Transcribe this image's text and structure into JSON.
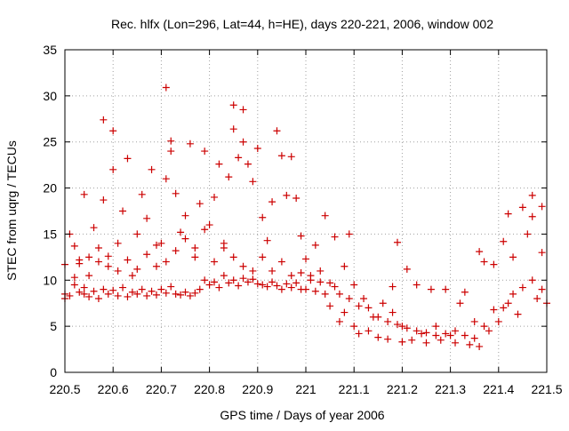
{
  "chart_data": {
    "type": "scatter",
    "title": "Rec. hlfx (Lon=296, Lat=44, h=HE), days 220-221, 2006, window 002",
    "xlabel": "GPS time / Days of year 2006",
    "ylabel": "STEC from uqrg / TECUs",
    "xlim": [
      220.5,
      221.5
    ],
    "ylim": [
      0,
      35
    ],
    "grid": true,
    "marker": "+",
    "color": "#cc0000",
    "x_ticks": [
      220.5,
      220.6,
      220.7,
      220.8,
      220.9,
      221.0,
      221.1,
      221.2,
      221.3,
      221.4,
      221.5
    ],
    "x_tick_labels": [
      "220.5",
      "220.6",
      "220.7",
      "220.8",
      "220.9",
      "221",
      "221.1",
      "221.2",
      "221.3",
      "221.4",
      "221.5"
    ],
    "y_ticks": [
      0,
      5,
      10,
      15,
      20,
      25,
      30,
      35
    ],
    "y_tick_labels": [
      "0",
      "5",
      "10",
      "15",
      "20",
      "25",
      "30",
      "35"
    ],
    "series": [
      {
        "name": "STEC",
        "points": [
          [
            220.5,
            8.5
          ],
          [
            220.5,
            8.0
          ],
          [
            220.51,
            8.3
          ],
          [
            220.52,
            9.5
          ],
          [
            220.53,
            8.7
          ],
          [
            220.54,
            8.5
          ],
          [
            220.54,
            9.2
          ],
          [
            220.55,
            8.2
          ],
          [
            220.56,
            8.8
          ],
          [
            220.57,
            8.0
          ],
          [
            220.58,
            9.0
          ],
          [
            220.59,
            8.5
          ],
          [
            220.6,
            8.9
          ],
          [
            220.61,
            8.3
          ],
          [
            220.62,
            9.2
          ],
          [
            220.63,
            8.2
          ],
          [
            220.64,
            8.7
          ],
          [
            220.65,
            8.5
          ],
          [
            220.66,
            9.0
          ],
          [
            220.67,
            8.3
          ],
          [
            220.68,
            8.8
          ],
          [
            220.69,
            8.4
          ],
          [
            220.7,
            9.0
          ],
          [
            220.71,
            8.6
          ],
          [
            220.72,
            9.3
          ],
          [
            220.73,
            8.5
          ],
          [
            220.74,
            8.4
          ],
          [
            220.75,
            8.7
          ],
          [
            220.76,
            8.3
          ],
          [
            220.77,
            8.6
          ],
          [
            220.78,
            9.0
          ],
          [
            220.79,
            10.0
          ],
          [
            220.8,
            9.5
          ],
          [
            220.81,
            9.8
          ],
          [
            220.82,
            9.2
          ],
          [
            220.83,
            10.5
          ],
          [
            220.84,
            9.7
          ],
          [
            220.85,
            10.0
          ],
          [
            220.86,
            9.4
          ],
          [
            220.87,
            10.2
          ],
          [
            220.88,
            9.8
          ],
          [
            220.89,
            10.1
          ],
          [
            220.9,
            9.6
          ],
          [
            220.91,
            9.5
          ],
          [
            220.92,
            9.3
          ],
          [
            220.93,
            9.8
          ],
          [
            220.94,
            9.4
          ],
          [
            220.95,
            9.0
          ],
          [
            220.96,
            9.6
          ],
          [
            220.97,
            9.2
          ],
          [
            220.98,
            9.7
          ],
          [
            220.99,
            9.0
          ],
          [
            220.5,
            11.7
          ],
          [
            220.51,
            15.0
          ],
          [
            220.52,
            13.7
          ],
          [
            220.53,
            12.2
          ],
          [
            220.54,
            19.3
          ],
          [
            220.55,
            10.5
          ],
          [
            220.56,
            15.7
          ],
          [
            220.57,
            12.0
          ],
          [
            220.58,
            18.7
          ],
          [
            220.58,
            27.4
          ],
          [
            220.59,
            11.5
          ],
          [
            220.6,
            22.0
          ],
          [
            220.6,
            26.2
          ],
          [
            220.61,
            14.0
          ],
          [
            220.62,
            17.5
          ],
          [
            220.63,
            23.2
          ],
          [
            220.64,
            10.5
          ],
          [
            220.65,
            15.0
          ],
          [
            220.66,
            19.3
          ],
          [
            220.67,
            16.7
          ],
          [
            220.68,
            22.0
          ],
          [
            220.69,
            11.5
          ],
          [
            220.7,
            14.0
          ],
          [
            220.71,
            30.9
          ],
          [
            220.71,
            21.0
          ],
          [
            220.72,
            24.0
          ],
          [
            220.72,
            25.1
          ],
          [
            220.73,
            19.4
          ],
          [
            220.74,
            15.2
          ],
          [
            220.75,
            17.0
          ],
          [
            220.76,
            24.8
          ],
          [
            220.77,
            13.5
          ],
          [
            220.78,
            18.3
          ],
          [
            220.79,
            24.0
          ],
          [
            220.8,
            16.0
          ],
          [
            220.81,
            19.0
          ],
          [
            220.82,
            22.6
          ],
          [
            220.83,
            14.0
          ],
          [
            220.84,
            21.2
          ],
          [
            220.85,
            26.4
          ],
          [
            220.85,
            29.0
          ],
          [
            220.86,
            23.3
          ],
          [
            220.87,
            28.5
          ],
          [
            220.87,
            25.0
          ],
          [
            220.88,
            22.6
          ],
          [
            220.89,
            20.7
          ],
          [
            220.9,
            24.3
          ],
          [
            220.91,
            16.8
          ],
          [
            220.92,
            14.3
          ],
          [
            220.93,
            18.5
          ],
          [
            220.94,
            26.2
          ],
          [
            220.95,
            23.5
          ],
          [
            220.96,
            19.2
          ],
          [
            220.97,
            23.4
          ],
          [
            220.98,
            18.9
          ],
          [
            220.99,
            14.8
          ],
          [
            220.52,
            10.3
          ],
          [
            220.53,
            11.8
          ],
          [
            220.55,
            12.5
          ],
          [
            220.57,
            13.5
          ],
          [
            220.59,
            12.6
          ],
          [
            220.61,
            11.0
          ],
          [
            220.63,
            12.2
          ],
          [
            220.65,
            11.2
          ],
          [
            220.67,
            12.8
          ],
          [
            220.69,
            13.8
          ],
          [
            220.71,
            12.0
          ],
          [
            220.73,
            13.2
          ],
          [
            220.75,
            14.5
          ],
          [
            220.77,
            12.5
          ],
          [
            220.79,
            15.5
          ],
          [
            220.81,
            12.0
          ],
          [
            220.83,
            13.5
          ],
          [
            220.85,
            12.5
          ],
          [
            220.87,
            11.5
          ],
          [
            220.89,
            11.0
          ],
          [
            220.91,
            12.5
          ],
          [
            220.93,
            11.0
          ],
          [
            220.95,
            12.0
          ],
          [
            220.97,
            10.5
          ],
          [
            220.99,
            10.8
          ],
          [
            221.0,
            9.0
          ],
          [
            221.0,
            12.3
          ],
          [
            221.01,
            10.5
          ],
          [
            221.02,
            8.8
          ],
          [
            221.02,
            13.8
          ],
          [
            221.03,
            9.8
          ],
          [
            221.04,
            17.0
          ],
          [
            221.04,
            8.5
          ],
          [
            221.05,
            7.2
          ],
          [
            221.06,
            14.7
          ],
          [
            221.06,
            9.3
          ],
          [
            221.07,
            5.5
          ],
          [
            221.08,
            11.5
          ],
          [
            221.08,
            6.5
          ],
          [
            221.09,
            15.0
          ],
          [
            221.1,
            5.0
          ],
          [
            221.1,
            9.5
          ],
          [
            221.11,
            4.2
          ],
          [
            221.12,
            8.0
          ],
          [
            221.13,
            4.5
          ],
          [
            221.14,
            6.0
          ],
          [
            221.15,
            3.8
          ],
          [
            221.16,
            7.5
          ],
          [
            221.17,
            3.6
          ],
          [
            221.18,
            9.3
          ],
          [
            221.18,
            6.5
          ],
          [
            221.19,
            14.1
          ],
          [
            221.2,
            3.3
          ],
          [
            221.2,
            5.0
          ],
          [
            221.21,
            11.2
          ],
          [
            221.22,
            3.5
          ],
          [
            221.23,
            9.5
          ],
          [
            221.24,
            4.2
          ],
          [
            221.25,
            3.2
          ],
          [
            221.26,
            9.0
          ],
          [
            221.27,
            5.0
          ],
          [
            221.28,
            3.5
          ],
          [
            221.29,
            9.0
          ],
          [
            221.3,
            4.0
          ],
          [
            221.31,
            3.2
          ],
          [
            221.32,
            7.5
          ],
          [
            221.33,
            8.7
          ],
          [
            221.34,
            3.0
          ],
          [
            221.35,
            5.5
          ],
          [
            221.36,
            13.1
          ],
          [
            221.36,
            2.8
          ],
          [
            221.37,
            12.0
          ],
          [
            221.38,
            4.5
          ],
          [
            221.39,
            11.7
          ],
          [
            221.4,
            5.5
          ],
          [
            221.41,
            14.2
          ],
          [
            221.42,
            17.2
          ],
          [
            221.42,
            7.5
          ],
          [
            221.43,
            12.5
          ],
          [
            221.44,
            6.3
          ],
          [
            221.45,
            17.9
          ],
          [
            221.46,
            15.0
          ],
          [
            221.47,
            19.2
          ],
          [
            221.47,
            16.9
          ],
          [
            221.48,
            8.0
          ],
          [
            221.49,
            18.0
          ],
          [
            221.49,
            13.0
          ],
          [
            221.5,
            7.5
          ],
          [
            221.01,
            10.0
          ],
          [
            221.03,
            11.0
          ],
          [
            221.05,
            9.7
          ],
          [
            221.07,
            8.5
          ],
          [
            221.09,
            8.0
          ],
          [
            221.11,
            7.2
          ],
          [
            221.13,
            7.0
          ],
          [
            221.15,
            6.0
          ],
          [
            221.17,
            5.5
          ],
          [
            221.19,
            5.2
          ],
          [
            221.21,
            4.8
          ],
          [
            221.23,
            4.5
          ],
          [
            221.25,
            4.3
          ],
          [
            221.27,
            4.0
          ],
          [
            221.29,
            4.2
          ],
          [
            221.31,
            4.5
          ],
          [
            221.33,
            4.0
          ],
          [
            221.35,
            3.7
          ],
          [
            221.37,
            5.0
          ],
          [
            221.39,
            6.8
          ],
          [
            221.41,
            7.0
          ],
          [
            221.43,
            8.5
          ],
          [
            221.45,
            9.2
          ],
          [
            221.47,
            10.0
          ],
          [
            221.49,
            9.0
          ]
        ]
      }
    ]
  }
}
